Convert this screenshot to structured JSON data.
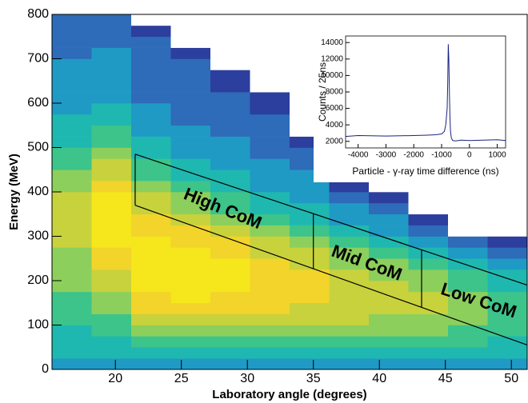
{
  "chart_data": [
    {
      "type": "heatmap",
      "xlabel": "Laboratory angle (degrees)",
      "ylabel": "Energy (MeV)",
      "xlim": [
        15.2,
        51.2
      ],
      "ylim": [
        0,
        800
      ],
      "xticks": [
        20,
        25,
        30,
        35,
        40,
        45,
        50
      ],
      "yticks": [
        0,
        100,
        200,
        300,
        400,
        500,
        600,
        700,
        800
      ],
      "xbins": [
        15.2,
        18.2,
        21.2,
        24.2,
        27.2,
        30.2,
        33.2,
        36.2,
        39.2,
        42.2,
        45.2,
        48.2,
        51.2
      ],
      "ybins": [
        0,
        25,
        50,
        75,
        100,
        125,
        150,
        175,
        200,
        225,
        250,
        275,
        300,
        325,
        350,
        375,
        400,
        425,
        450,
        475,
        500,
        525,
        550,
        575,
        600,
        625,
        650,
        675,
        700,
        725,
        750,
        775,
        800
      ],
      "z": [
        [
          3,
          4,
          4,
          4,
          5,
          5,
          5,
          6,
          6,
          6,
          6,
          7,
          7,
          7,
          7,
          7,
          6,
          6,
          5,
          5,
          4,
          4,
          4,
          3,
          3,
          3,
          3,
          3,
          2,
          2,
          2,
          2
        ],
        [
          3,
          4,
          4,
          5,
          5,
          6,
          6,
          7,
          7,
          8,
          8,
          9,
          9,
          9,
          9,
          9,
          8,
          7,
          7,
          6,
          5,
          5,
          4,
          4,
          3,
          3,
          3,
          3,
          3,
          2,
          2,
          2
        ],
        [
          3,
          4,
          5,
          6,
          7,
          8,
          8,
          9,
          9,
          9,
          9,
          9,
          8,
          8,
          7,
          7,
          6,
          5,
          5,
          4,
          4,
          3,
          3,
          3,
          2,
          2,
          2,
          2,
          2,
          2,
          1,
          0
        ],
        [
          3,
          4,
          5,
          6,
          7,
          8,
          9,
          9,
          9,
          9,
          9,
          8,
          8,
          7,
          6,
          6,
          5,
          4,
          4,
          3,
          3,
          3,
          2,
          2,
          2,
          2,
          2,
          2,
          1,
          0,
          0,
          0
        ],
        [
          3,
          4,
          5,
          6,
          7,
          8,
          8,
          9,
          9,
          9,
          8,
          8,
          7,
          6,
          5,
          5,
          4,
          4,
          3,
          3,
          3,
          2,
          2,
          2,
          2,
          1,
          1,
          0,
          0,
          0,
          0,
          0
        ],
        [
          3,
          4,
          5,
          6,
          7,
          8,
          8,
          8,
          8,
          8,
          7,
          7,
          6,
          5,
          4,
          4,
          3,
          3,
          3,
          2,
          2,
          2,
          2,
          1,
          1,
          0,
          0,
          0,
          0,
          0,
          0,
          0
        ],
        [
          3,
          4,
          5,
          6,
          7,
          7,
          8,
          8,
          8,
          7,
          7,
          6,
          5,
          4,
          4,
          3,
          3,
          3,
          2,
          2,
          1,
          0,
          0,
          0,
          0,
          0,
          0,
          0,
          0,
          0,
          0,
          0
        ],
        [
          3,
          4,
          5,
          6,
          7,
          7,
          7,
          7,
          7,
          6,
          6,
          5,
          4,
          3,
          3,
          2,
          1,
          0,
          0,
          0,
          0,
          0,
          0,
          0,
          0,
          0,
          0,
          0,
          0,
          0,
          0,
          0
        ],
        [
          3,
          4,
          5,
          6,
          6,
          7,
          7,
          7,
          6,
          6,
          5,
          4,
          3,
          3,
          2,
          1,
          0,
          0,
          0,
          0,
          0,
          0,
          0,
          0,
          0,
          0,
          0,
          0,
          0,
          0,
          0,
          0
        ],
        [
          3,
          4,
          5,
          6,
          6,
          7,
          7,
          6,
          6,
          5,
          4,
          3,
          2,
          1,
          0,
          0,
          0,
          0,
          0,
          0,
          0,
          0,
          0,
          0,
          0,
          0,
          0,
          0,
          0,
          0,
          0,
          0
        ],
        [
          3,
          4,
          5,
          5,
          6,
          6,
          6,
          5,
          5,
          4,
          3,
          2,
          0,
          0,
          0,
          0,
          0,
          0,
          0,
          0,
          0,
          0,
          0,
          0,
          0,
          0,
          0,
          0,
          0,
          0,
          0,
          0
        ],
        [
          3,
          4,
          4,
          5,
          5,
          5,
          5,
          4,
          4,
          3,
          2,
          1,
          0,
          0,
          0,
          0,
          0,
          0,
          0,
          0,
          0,
          0,
          0,
          0,
          0,
          0,
          0,
          0,
          0,
          0,
          0,
          0
        ]
      ],
      "colormap": [
        "#ffffff",
        "#2c3e9e",
        "#2e6bb8",
        "#1f9ac4",
        "#1fb8b0",
        "#3cc48a",
        "#8ccf5c",
        "#c8d23c",
        "#f2d42a",
        "#f6e61c"
      ],
      "cut_lines": [
        {
          "x": [
            21.5,
            51.2
          ],
          "y": [
            485,
            190
          ]
        },
        {
          "x": [
            21.5,
            51.2
          ],
          "y": [
            370,
            55
          ]
        }
      ],
      "dividers": [
        21.5,
        35,
        43.2
      ],
      "annotations": [
        "High CoM",
        "Mid CoM",
        "Low CoM"
      ]
    },
    {
      "type": "line",
      "xlabel": "Particle - γ-ray time difference (ns)",
      "ylabel": "Counts / 25ns",
      "xlim": [
        -4450,
        1300
      ],
      "ylim": [
        1200,
        14800
      ],
      "xticks": [
        -4000,
        -3000,
        -2000,
        -1000,
        0,
        1000
      ],
      "yticks": [
        2000,
        4000,
        6000,
        8000,
        10000,
        12000,
        14000
      ],
      "color": "#1a237e",
      "x": [
        -4450,
        -4000,
        -3000,
        -2000,
        -1500,
        -1200,
        -1000,
        -900,
        -850,
        -800,
        -780,
        -760,
        -740,
        -720,
        -700,
        -680,
        -650,
        -600,
        -500,
        -300,
        0,
        500,
        1000,
        1300
      ],
      "y": [
        2600,
        2700,
        2650,
        2700,
        2750,
        2800,
        2900,
        3200,
        4000,
        6000,
        9000,
        13800,
        12000,
        8000,
        5000,
        3200,
        2400,
        2100,
        2050,
        2150,
        2100,
        2150,
        2200,
        2100
      ]
    }
  ]
}
